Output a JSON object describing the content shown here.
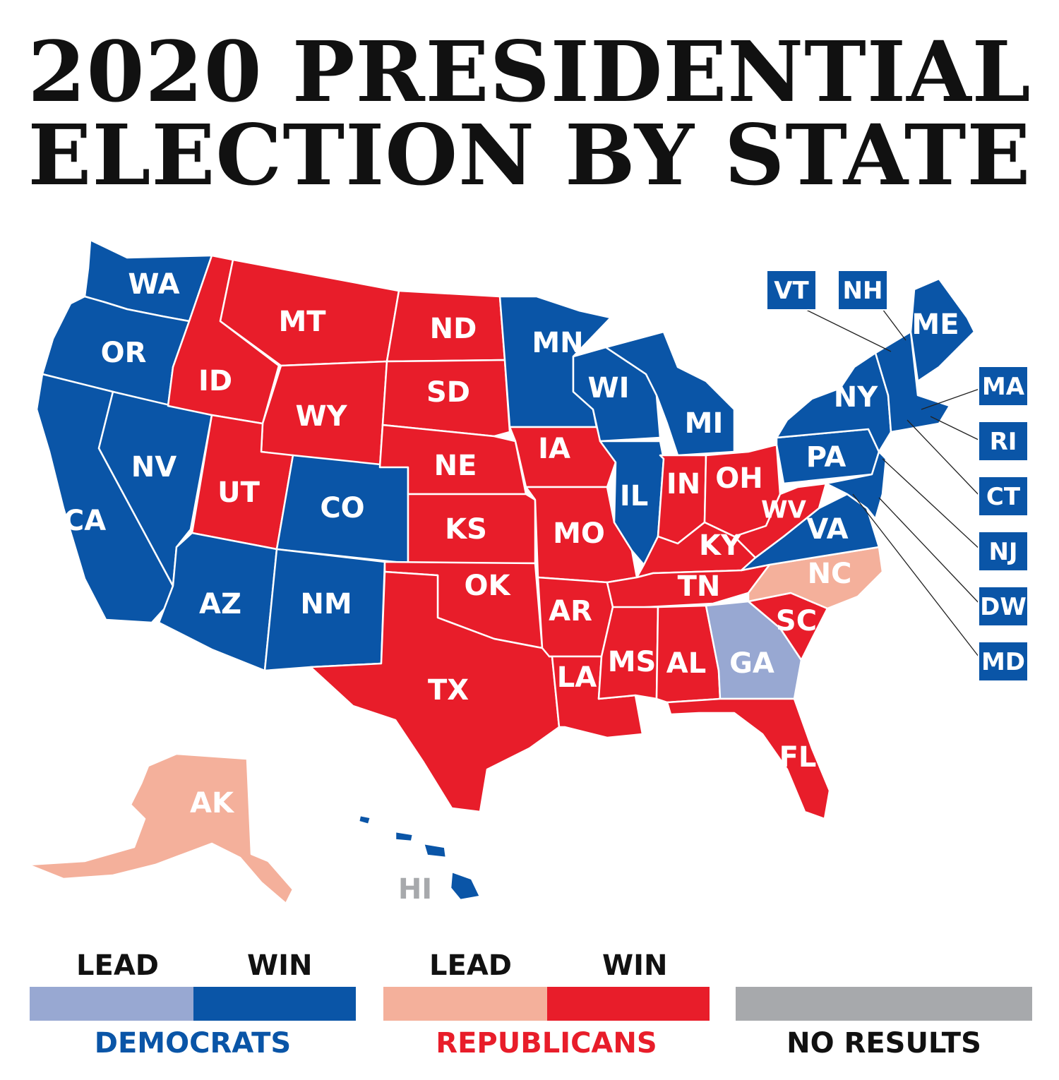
{
  "title_line1": "2020 PRESIDENTIAL",
  "title_line2": "ELECTION BY STATE",
  "colors": {
    "dem_win": "#0a55a7",
    "dem_lead": "#98a8d2",
    "rep_win": "#e81d2a",
    "rep_lead": "#f4b09b",
    "no_results": "#a7a9ac"
  },
  "states": {
    "WA": {
      "label": "WA",
      "status": "dem_win"
    },
    "OR": {
      "label": "OR",
      "status": "dem_win"
    },
    "CA": {
      "label": "CA",
      "status": "dem_win"
    },
    "NV": {
      "label": "NV",
      "status": "dem_win"
    },
    "ID": {
      "label": "ID",
      "status": "rep_win"
    },
    "MT": {
      "label": "MT",
      "status": "rep_win"
    },
    "WY": {
      "label": "WY",
      "status": "rep_win"
    },
    "UT": {
      "label": "UT",
      "status": "rep_win"
    },
    "CO": {
      "label": "CO",
      "status": "dem_win"
    },
    "AZ": {
      "label": "AZ",
      "status": "dem_win"
    },
    "NM": {
      "label": "NM",
      "status": "dem_win"
    },
    "ND": {
      "label": "ND",
      "status": "rep_win"
    },
    "SD": {
      "label": "SD",
      "status": "rep_win"
    },
    "NE": {
      "label": "NE",
      "status": "rep_win"
    },
    "KS": {
      "label": "KS",
      "status": "rep_win"
    },
    "OK": {
      "label": "OK",
      "status": "rep_win"
    },
    "TX": {
      "label": "TX",
      "status": "rep_win"
    },
    "MN": {
      "label": "MN",
      "status": "dem_win"
    },
    "IA": {
      "label": "IA",
      "status": "rep_win"
    },
    "MO": {
      "label": "MO",
      "status": "rep_win"
    },
    "AR": {
      "label": "AR",
      "status": "rep_win"
    },
    "LA": {
      "label": "LA",
      "status": "rep_win"
    },
    "WI": {
      "label": "WI",
      "status": "dem_win"
    },
    "IL": {
      "label": "IL",
      "status": "dem_win"
    },
    "MI": {
      "label": "MI",
      "status": "dem_win"
    },
    "IN": {
      "label": "IN",
      "status": "rep_win"
    },
    "OH": {
      "label": "OH",
      "status": "rep_win"
    },
    "KY": {
      "label": "KY",
      "status": "rep_win"
    },
    "TN": {
      "label": "TN",
      "status": "rep_win"
    },
    "MS": {
      "label": "MS",
      "status": "rep_win"
    },
    "AL": {
      "label": "AL",
      "status": "rep_win"
    },
    "GA": {
      "label": "GA",
      "status": "dem_lead"
    },
    "FL": {
      "label": "FL",
      "status": "rep_win"
    },
    "SC": {
      "label": "SC",
      "status": "rep_win"
    },
    "NC": {
      "label": "NC",
      "status": "rep_lead"
    },
    "VA": {
      "label": "VA",
      "status": "dem_win"
    },
    "WV": {
      "label": "WV",
      "status": "rep_win"
    },
    "PA": {
      "label": "PA",
      "status": "dem_win"
    },
    "NY": {
      "label": "NY",
      "status": "dem_win"
    },
    "ME": {
      "label": "ME",
      "status": "dem_win"
    },
    "AK": {
      "label": "AK",
      "status": "rep_lead"
    },
    "HI": {
      "label": "HI",
      "status": "dem_win"
    }
  },
  "northeast_boxes": {
    "VT": {
      "label": "VT",
      "status": "dem_win"
    },
    "NH": {
      "label": "NH",
      "status": "dem_win"
    },
    "MA": {
      "label": "MA",
      "status": "dem_win"
    },
    "RI": {
      "label": "RI",
      "status": "dem_win"
    },
    "CT": {
      "label": "CT",
      "status": "dem_win"
    },
    "NJ": {
      "label": "NJ",
      "status": "dem_win"
    },
    "DW": {
      "label": "DW",
      "status": "dem_win"
    },
    "MD": {
      "label": "MD",
      "status": "dem_win"
    }
  },
  "legend": {
    "dem_lead_label": "LEAD",
    "dem_win_label": "WIN",
    "dem_party": "DEMOCRATS",
    "rep_lead_label": "LEAD",
    "rep_win_label": "WIN",
    "rep_party": "REPUBLICANS",
    "no_results": "NO RESULTS"
  }
}
